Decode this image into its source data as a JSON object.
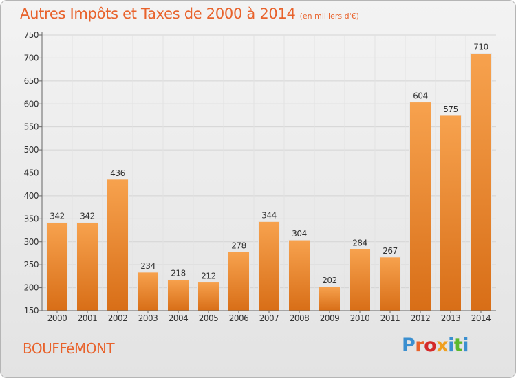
{
  "header": {
    "title": "Autres Impôts et Taxes de 2000 à 2014",
    "unit": "(en milliers d'€)"
  },
  "footer": {
    "commune": "BOUFFéMONT",
    "logo_text": "Proxiti"
  },
  "colors": {
    "bar_light": "#f7a24e",
    "bar_dark": "#d86e17",
    "accent": "#e8622b",
    "axis": "#666666",
    "grid": "#d4d4d4"
  },
  "chart_data": {
    "type": "bar",
    "categories": [
      "2000",
      "2001",
      "2002",
      "2003",
      "2004",
      "2005",
      "2006",
      "2007",
      "2008",
      "2009",
      "2010",
      "2011",
      "2012",
      "2013",
      "2014"
    ],
    "values": [
      342,
      342,
      436,
      234,
      218,
      212,
      278,
      344,
      304,
      202,
      284,
      267,
      604,
      575,
      710
    ],
    "title": "Autres Impôts et Taxes de 2000 à 2014",
    "subtitle": "(en milliers d'€)",
    "xlabel": "",
    "ylabel": "",
    "ylim": [
      150,
      750
    ],
    "yticks": [
      150,
      200,
      250,
      300,
      350,
      400,
      450,
      500,
      550,
      600,
      650,
      700,
      750
    ],
    "grid": true,
    "data_labels": true
  }
}
